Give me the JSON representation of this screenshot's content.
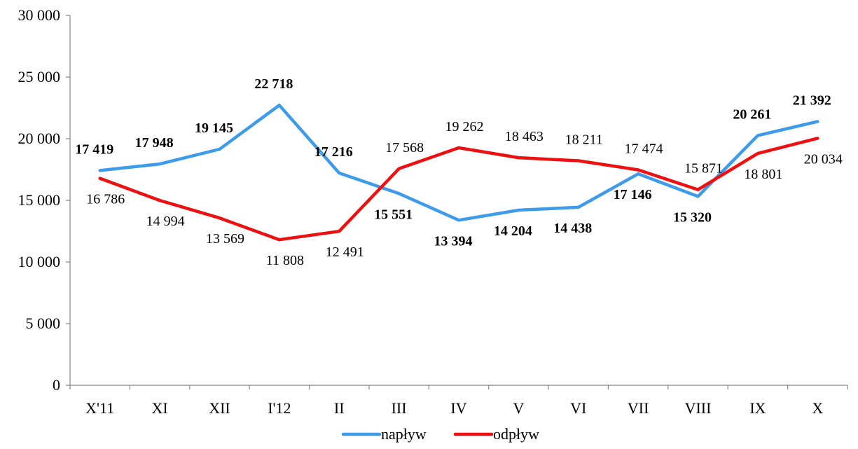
{
  "chart_data": {
    "type": "line",
    "title": "",
    "xlabel": "",
    "ylabel": "",
    "categories": [
      "X'11",
      "XI",
      "XII",
      "I'12",
      "II",
      "III",
      "IV",
      "V",
      "VI",
      "VII",
      "VIII",
      "IX",
      "X"
    ],
    "ylim": [
      0,
      30000
    ],
    "yticks": [
      0,
      5000,
      10000,
      15000,
      20000,
      25000,
      30000
    ],
    "ytick_labels": [
      "0",
      "5 000",
      "10 000",
      "15 000",
      "20 000",
      "25 000",
      "30 000"
    ],
    "grid": false,
    "legend_position": "bottom-center",
    "series": [
      {
        "name": "napływ",
        "color": "#3d9be9",
        "values": [
          17419,
          17948,
          19145,
          22718,
          17216,
          15551,
          13394,
          14204,
          14438,
          17146,
          15320,
          20261,
          21392
        ],
        "labels": [
          "17 419",
          "17 948",
          "19 145",
          "22 718",
          "17 216",
          "15 551",
          "13 394",
          "14 204",
          "14 438",
          "17 146",
          "15 320",
          "20 261",
          "21 392"
        ],
        "label_style": "bold"
      },
      {
        "name": "odpływ",
        "color": "#ee1010",
        "values": [
          16786,
          14994,
          13569,
          11808,
          12491,
          17568,
          19262,
          18463,
          18211,
          17474,
          15871,
          18801,
          20034
        ],
        "labels": [
          "16 786",
          "14 994",
          "13 569",
          "11 808",
          "12 491",
          "17 568",
          "19 262",
          "18 463",
          "18 211",
          "17 474",
          "15 871",
          "18 801",
          "20 034"
        ],
        "label_style": "normal"
      }
    ]
  }
}
